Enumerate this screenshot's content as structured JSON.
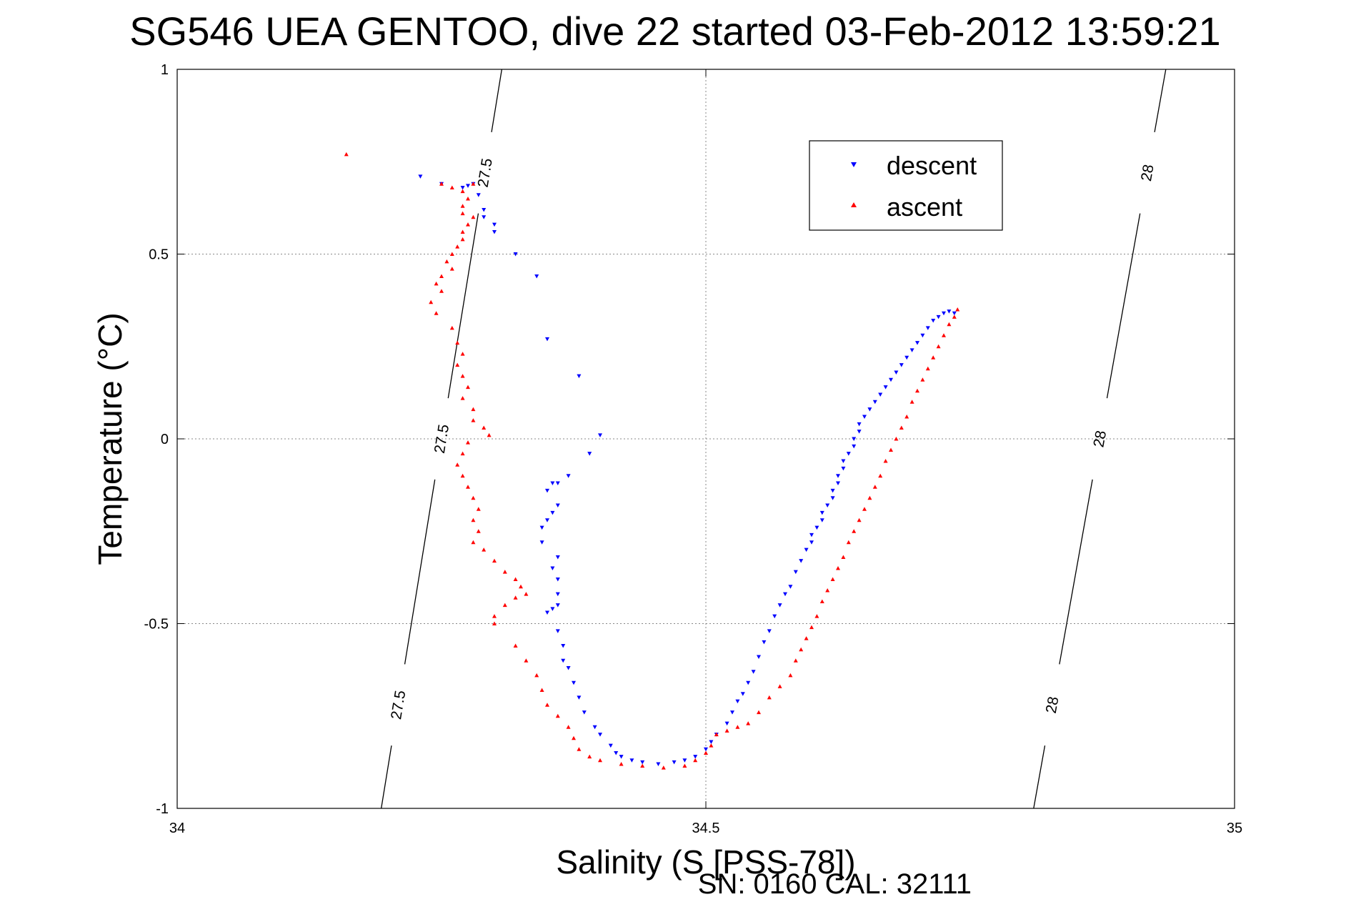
{
  "chart_data": {
    "type": "scatter",
    "title": "SG546 UEA GENTOO, dive 22 started 03-Feb-2012 13:59:21",
    "xlabel": "Salinity (S [PSS-78])",
    "ylabel": "Temperature (°C)",
    "footer": "SN: 0160  CAL: 32111",
    "xlim": [
      34,
      35
    ],
    "ylim": [
      -1,
      1
    ],
    "x_ticks": [
      "34",
      "34.5",
      "35"
    ],
    "y_ticks": [
      "1",
      "0.5",
      "0",
      "-0.5",
      "-1"
    ],
    "grid": true,
    "legend_position": "top-right",
    "density_contours": [
      {
        "label": "27.5",
        "points": [
          [
            34.193,
            -1
          ],
          [
            34.307,
            1
          ]
        ]
      },
      {
        "label": "28",
        "points": [
          [
            34.81,
            -1
          ],
          [
            34.935,
            1
          ]
        ]
      }
    ],
    "series": [
      {
        "name": "descent",
        "color": "#0000ff",
        "marker": "triangle-down",
        "points": [
          [
            34.23,
            0.71
          ],
          [
            34.25,
            0.69
          ],
          [
            34.27,
            0.68
          ],
          [
            34.275,
            0.685
          ],
          [
            34.28,
            0.69
          ],
          [
            34.285,
            0.66
          ],
          [
            34.29,
            0.62
          ],
          [
            34.29,
            0.6
          ],
          [
            34.3,
            0.58
          ],
          [
            34.3,
            0.56
          ],
          [
            34.32,
            0.5
          ],
          [
            34.34,
            0.44
          ],
          [
            34.35,
            0.27
          ],
          [
            34.38,
            0.17
          ],
          [
            34.4,
            0.01
          ],
          [
            34.39,
            -0.04
          ],
          [
            34.37,
            -0.1
          ],
          [
            34.36,
            -0.12
          ],
          [
            34.355,
            -0.12
          ],
          [
            34.35,
            -0.14
          ],
          [
            34.36,
            -0.18
          ],
          [
            34.355,
            -0.2
          ],
          [
            34.35,
            -0.22
          ],
          [
            34.345,
            -0.24
          ],
          [
            34.345,
            -0.28
          ],
          [
            34.36,
            -0.32
          ],
          [
            34.355,
            -0.35
          ],
          [
            34.36,
            -0.38
          ],
          [
            34.36,
            -0.42
          ],
          [
            34.36,
            -0.45
          ],
          [
            34.355,
            -0.46
          ],
          [
            34.35,
            -0.47
          ],
          [
            34.36,
            -0.52
          ],
          [
            34.365,
            -0.56
          ],
          [
            34.365,
            -0.6
          ],
          [
            34.37,
            -0.62
          ],
          [
            34.375,
            -0.66
          ],
          [
            34.38,
            -0.7
          ],
          [
            34.385,
            -0.74
          ],
          [
            34.395,
            -0.78
          ],
          [
            34.4,
            -0.8
          ],
          [
            34.41,
            -0.83
          ],
          [
            34.415,
            -0.85
          ],
          [
            34.42,
            -0.86
          ],
          [
            34.43,
            -0.87
          ],
          [
            34.44,
            -0.875
          ],
          [
            34.455,
            -0.88
          ],
          [
            34.47,
            -0.875
          ],
          [
            34.48,
            -0.87
          ],
          [
            34.49,
            -0.86
          ],
          [
            34.5,
            -0.84
          ],
          [
            34.505,
            -0.82
          ],
          [
            34.51,
            -0.8
          ],
          [
            34.52,
            -0.77
          ],
          [
            34.525,
            -0.74
          ],
          [
            34.53,
            -0.71
          ],
          [
            34.535,
            -0.69
          ],
          [
            34.54,
            -0.66
          ],
          [
            34.545,
            -0.63
          ],
          [
            34.55,
            -0.59
          ],
          [
            34.555,
            -0.55
          ],
          [
            34.56,
            -0.52
          ],
          [
            34.565,
            -0.48
          ],
          [
            34.57,
            -0.45
          ],
          [
            34.575,
            -0.42
          ],
          [
            34.58,
            -0.4
          ],
          [
            34.585,
            -0.36
          ],
          [
            34.59,
            -0.33
          ],
          [
            34.595,
            -0.3
          ],
          [
            34.6,
            -0.28
          ],
          [
            34.6,
            -0.26
          ],
          [
            34.605,
            -0.24
          ],
          [
            34.61,
            -0.22
          ],
          [
            34.61,
            -0.2
          ],
          [
            34.615,
            -0.18
          ],
          [
            34.62,
            -0.16
          ],
          [
            34.62,
            -0.14
          ],
          [
            34.625,
            -0.12
          ],
          [
            34.625,
            -0.1
          ],
          [
            34.63,
            -0.08
          ],
          [
            34.63,
            -0.06
          ],
          [
            34.635,
            -0.04
          ],
          [
            34.64,
            -0.02
          ],
          [
            34.64,
            0.0
          ],
          [
            34.645,
            0.02
          ],
          [
            34.645,
            0.04
          ],
          [
            34.65,
            0.06
          ],
          [
            34.655,
            0.08
          ],
          [
            34.66,
            0.1
          ],
          [
            34.665,
            0.12
          ],
          [
            34.67,
            0.14
          ],
          [
            34.675,
            0.16
          ],
          [
            34.68,
            0.18
          ],
          [
            34.685,
            0.2
          ],
          [
            34.69,
            0.22
          ],
          [
            34.695,
            0.24
          ],
          [
            34.7,
            0.26
          ],
          [
            34.705,
            0.28
          ],
          [
            34.71,
            0.3
          ],
          [
            34.715,
            0.32
          ],
          [
            34.72,
            0.33
          ],
          [
            34.725,
            0.34
          ],
          [
            34.73,
            0.345
          ],
          [
            34.735,
            0.34
          ]
        ]
      },
      {
        "name": "ascent",
        "color": "#ff0000",
        "marker": "triangle-up",
        "points": [
          [
            34.16,
            0.77
          ],
          [
            34.25,
            0.69
          ],
          [
            34.26,
            0.68
          ],
          [
            34.27,
            0.67
          ],
          [
            34.275,
            0.65
          ],
          [
            34.28,
            0.69
          ],
          [
            34.27,
            0.63
          ],
          [
            34.27,
            0.61
          ],
          [
            34.28,
            0.6
          ],
          [
            34.275,
            0.58
          ],
          [
            34.27,
            0.56
          ],
          [
            34.27,
            0.54
          ],
          [
            34.265,
            0.52
          ],
          [
            34.26,
            0.5
          ],
          [
            34.255,
            0.48
          ],
          [
            34.26,
            0.46
          ],
          [
            34.25,
            0.44
          ],
          [
            34.245,
            0.42
          ],
          [
            34.25,
            0.4
          ],
          [
            34.24,
            0.37
          ],
          [
            34.245,
            0.34
          ],
          [
            34.26,
            0.3
          ],
          [
            34.265,
            0.26
          ],
          [
            34.27,
            0.23
          ],
          [
            34.265,
            0.2
          ],
          [
            34.27,
            0.17
          ],
          [
            34.275,
            0.14
          ],
          [
            34.27,
            0.11
          ],
          [
            34.28,
            0.08
          ],
          [
            34.28,
            0.05
          ],
          [
            34.29,
            0.03
          ],
          [
            34.295,
            0.01
          ],
          [
            34.275,
            -0.01
          ],
          [
            34.27,
            -0.04
          ],
          [
            34.265,
            -0.07
          ],
          [
            34.27,
            -0.1
          ],
          [
            34.275,
            -0.13
          ],
          [
            34.28,
            -0.16
          ],
          [
            34.285,
            -0.19
          ],
          [
            34.28,
            -0.22
          ],
          [
            34.285,
            -0.25
          ],
          [
            34.28,
            -0.28
          ],
          [
            34.29,
            -0.3
          ],
          [
            34.3,
            -0.33
          ],
          [
            34.31,
            -0.36
          ],
          [
            34.32,
            -0.38
          ],
          [
            34.325,
            -0.4
          ],
          [
            34.33,
            -0.42
          ],
          [
            34.32,
            -0.43
          ],
          [
            34.31,
            -0.45
          ],
          [
            34.3,
            -0.48
          ],
          [
            34.3,
            -0.5
          ],
          [
            34.32,
            -0.56
          ],
          [
            34.33,
            -0.6
          ],
          [
            34.34,
            -0.64
          ],
          [
            34.345,
            -0.68
          ],
          [
            34.35,
            -0.72
          ],
          [
            34.36,
            -0.75
          ],
          [
            34.37,
            -0.78
          ],
          [
            34.375,
            -0.81
          ],
          [
            34.38,
            -0.84
          ],
          [
            34.39,
            -0.86
          ],
          [
            34.4,
            -0.87
          ],
          [
            34.42,
            -0.88
          ],
          [
            34.44,
            -0.885
          ],
          [
            34.46,
            -0.89
          ],
          [
            34.48,
            -0.885
          ],
          [
            34.49,
            -0.87
          ],
          [
            34.5,
            -0.85
          ],
          [
            34.505,
            -0.83
          ],
          [
            34.51,
            -0.8
          ],
          [
            34.52,
            -0.79
          ],
          [
            34.53,
            -0.78
          ],
          [
            34.54,
            -0.77
          ],
          [
            34.55,
            -0.74
          ],
          [
            34.56,
            -0.7
          ],
          [
            34.57,
            -0.67
          ],
          [
            34.58,
            -0.64
          ],
          [
            34.585,
            -0.6
          ],
          [
            34.59,
            -0.57
          ],
          [
            34.595,
            -0.54
          ],
          [
            34.6,
            -0.51
          ],
          [
            34.605,
            -0.48
          ],
          [
            34.61,
            -0.44
          ],
          [
            34.615,
            -0.41
          ],
          [
            34.62,
            -0.38
          ],
          [
            34.625,
            -0.35
          ],
          [
            34.63,
            -0.32
          ],
          [
            34.635,
            -0.28
          ],
          [
            34.64,
            -0.25
          ],
          [
            34.645,
            -0.22
          ],
          [
            34.65,
            -0.19
          ],
          [
            34.655,
            -0.16
          ],
          [
            34.66,
            -0.13
          ],
          [
            34.665,
            -0.1
          ],
          [
            34.67,
            -0.06
          ],
          [
            34.675,
            -0.03
          ],
          [
            34.68,
            0.0
          ],
          [
            34.685,
            0.03
          ],
          [
            34.69,
            0.06
          ],
          [
            34.695,
            0.1
          ],
          [
            34.7,
            0.13
          ],
          [
            34.705,
            0.16
          ],
          [
            34.71,
            0.19
          ],
          [
            34.715,
            0.22
          ],
          [
            34.72,
            0.25
          ],
          [
            34.725,
            0.28
          ],
          [
            34.73,
            0.31
          ],
          [
            34.735,
            0.33
          ],
          [
            34.738,
            0.35
          ]
        ]
      }
    ]
  }
}
